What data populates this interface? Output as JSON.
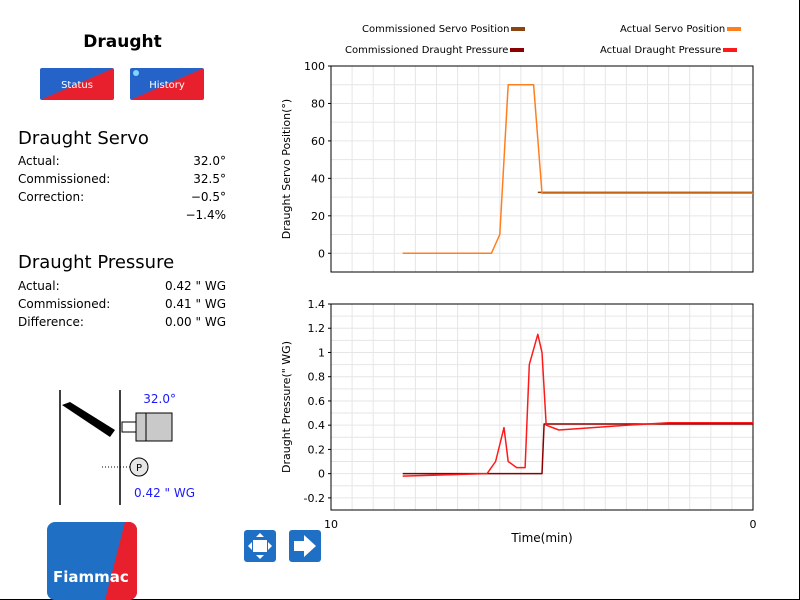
{
  "header": {
    "title": "Draught"
  },
  "buttons": {
    "status": "Status",
    "history": "History"
  },
  "servo": {
    "heading": "Draught Servo",
    "rows": [
      {
        "label": "Actual:",
        "value": "32.0°"
      },
      {
        "label": "Commissioned:",
        "value": "32.5°"
      },
      {
        "label": "Correction:",
        "value": "−0.5°"
      },
      {
        "label": "",
        "value": "−1.4%"
      }
    ]
  },
  "pressure": {
    "heading": "Draught Pressure",
    "rows": [
      {
        "label": "Actual:",
        "value": "0.42 \" WG"
      },
      {
        "label": "Commissioned:",
        "value": "0.41 \" WG"
      },
      {
        "label": "Difference:",
        "value": "0.00 \" WG"
      }
    ]
  },
  "diagram": {
    "servo_reading": "32.0°",
    "pressure_reading": "0.42 \" WG",
    "pressure_symbol": "P"
  },
  "legend": {
    "commissioned_servo": "Commissioned Servo Position",
    "actual_servo": "Actual Servo Position",
    "commissioned_pressure": "Commissioned Draught Pressure",
    "actual_pressure": "Actual Draught Pressure"
  },
  "colors": {
    "commissioned_servo": "#8b4513",
    "actual_servo": "#ff7f1e",
    "commissioned_pressure": "#8b0000",
    "actual_pressure": "#ff1a1a",
    "accent_blue": "#1f6fc4",
    "accent_red": "#e8202e"
  },
  "logo": {
    "text": "Fiammac"
  },
  "nav": {
    "icons": [
      "fit-screen-icon",
      "arrow-right-icon"
    ]
  },
  "chart_data": [
    {
      "type": "line",
      "ylabel": "Draught Servo Position(°)",
      "xlabel": "",
      "ylim": [
        -10,
        100
      ],
      "yticks": [
        0,
        20,
        40,
        60,
        80,
        100
      ],
      "xlim": [
        10,
        0
      ],
      "series": [
        {
          "name": "Commissioned Servo Position",
          "x": [
            5.1,
            3.0,
            0
          ],
          "y": [
            32.5,
            32.5,
            32.5
          ]
        },
        {
          "name": "Actual Servo Position",
          "x": [
            8.3,
            6.2,
            6.0,
            5.8,
            5.6,
            5.2,
            5.0,
            4.6,
            3.0,
            2.0,
            0
          ],
          "y": [
            0,
            0,
            10,
            90,
            90,
            90,
            32,
            32,
            32,
            32,
            32
          ]
        }
      ]
    },
    {
      "type": "line",
      "ylabel": "Draught Pressure(\" WG)",
      "xlabel": "Time(min)",
      "ylim": [
        -0.3,
        1.4
      ],
      "yticks": [
        -0.2,
        0,
        0.2,
        0.4,
        0.6,
        0.8,
        1,
        1.2,
        1.4
      ],
      "xlim": [
        10,
        0
      ],
      "xticks": [
        10,
        0
      ],
      "series": [
        {
          "name": "Commissioned Draught Pressure",
          "x": [
            8.3,
            5.0,
            4.95,
            0
          ],
          "y": [
            0,
            0,
            0.41,
            0.41
          ]
        },
        {
          "name": "Actual Draught Pressure",
          "x": [
            8.3,
            6.3,
            6.1,
            5.9,
            5.8,
            5.6,
            5.4,
            5.3,
            5.1,
            5.0,
            4.9,
            4.6,
            3.0,
            2.0,
            0
          ],
          "y": [
            -0.02,
            0,
            0.1,
            0.38,
            0.1,
            0.05,
            0.05,
            0.9,
            1.15,
            1.0,
            0.4,
            0.36,
            0.4,
            0.42,
            0.42
          ]
        }
      ]
    }
  ]
}
